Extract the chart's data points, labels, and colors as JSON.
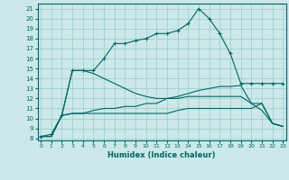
{
  "xlabel": "Humidex (Indice chaleur)",
  "bg_color": "#cce8e8",
  "grid_color": "#99cccc",
  "line_color": "#006666",
  "x_ticks": [
    0,
    1,
    2,
    3,
    4,
    5,
    6,
    7,
    8,
    9,
    10,
    11,
    12,
    13,
    14,
    15,
    16,
    17,
    18,
    19,
    20,
    21,
    22,
    23
  ],
  "y_ticks": [
    8,
    9,
    10,
    11,
    12,
    13,
    14,
    15,
    16,
    17,
    18,
    19,
    20,
    21
  ],
  "ylim": [
    7.8,
    21.5
  ],
  "xlim": [
    -0.3,
    23.3
  ],
  "series": [
    {
      "x": [
        0,
        1,
        2,
        3,
        4,
        5,
        6,
        7,
        8,
        9,
        10,
        11,
        12,
        13,
        14,
        15,
        16,
        17,
        18,
        19,
        20,
        21,
        22,
        23
      ],
      "y": [
        8.2,
        8.4,
        10.3,
        14.8,
        14.8,
        14.8,
        16.0,
        17.5,
        17.5,
        17.8,
        18.0,
        18.5,
        18.5,
        18.8,
        19.5,
        21.0,
        20.0,
        18.5,
        16.5,
        13.5,
        13.5,
        13.5,
        13.5,
        13.5
      ],
      "marker": "+"
    },
    {
      "x": [
        0,
        1,
        2,
        3,
        4,
        5,
        6,
        7,
        8,
        9,
        10,
        11,
        12,
        13,
        14,
        15,
        16,
        17,
        18,
        19,
        20,
        21,
        22,
        23
      ],
      "y": [
        8.2,
        8.2,
        10.3,
        14.8,
        14.8,
        14.5,
        14.0,
        13.5,
        13.0,
        12.5,
        12.2,
        12.0,
        12.0,
        12.2,
        12.5,
        12.8,
        13.0,
        13.2,
        13.2,
        13.3,
        11.5,
        10.8,
        9.5,
        9.2
      ],
      "marker": null
    },
    {
      "x": [
        0,
        1,
        2,
        3,
        4,
        5,
        6,
        7,
        8,
        9,
        10,
        11,
        12,
        13,
        14,
        15,
        16,
        17,
        18,
        19,
        20,
        21,
        22,
        23
      ],
      "y": [
        8.2,
        8.2,
        10.3,
        10.5,
        10.5,
        10.8,
        11.0,
        11.0,
        11.2,
        11.2,
        11.5,
        11.5,
        12.0,
        12.0,
        12.2,
        12.2,
        12.2,
        12.2,
        12.2,
        12.2,
        11.5,
        11.5,
        9.5,
        9.2
      ],
      "marker": null
    },
    {
      "x": [
        0,
        1,
        2,
        3,
        4,
        5,
        6,
        7,
        8,
        9,
        10,
        11,
        12,
        13,
        14,
        15,
        16,
        17,
        18,
        19,
        20,
        21,
        22,
        23
      ],
      "y": [
        8.2,
        8.2,
        10.3,
        10.5,
        10.5,
        10.5,
        10.5,
        10.5,
        10.5,
        10.5,
        10.5,
        10.5,
        10.5,
        10.8,
        11.0,
        11.0,
        11.0,
        11.0,
        11.0,
        11.0,
        11.0,
        11.5,
        9.5,
        9.2
      ],
      "marker": null
    }
  ]
}
